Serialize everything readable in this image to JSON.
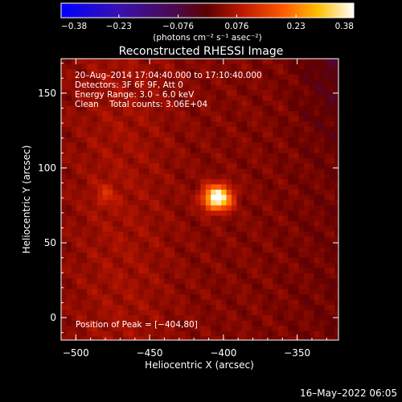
{
  "chart_data": {
    "type": "heatmap",
    "title": "Reconstructed RHESSI Image",
    "xlabel": "Heliocentric X (arcsec)",
    "ylabel": "Heliocentric Y (arcsec)",
    "xlim": [
      -510,
      -322
    ],
    "ylim": [
      -15,
      173
    ],
    "x_ticks": [
      -500,
      -450,
      -400,
      -350
    ],
    "y_ticks": [
      0,
      50,
      100,
      150
    ],
    "x_tick_labels": [
      "−500",
      "−450",
      "−400",
      "−350"
    ],
    "y_tick_labels": [
      "0",
      "50",
      "100",
      "150"
    ],
    "colorbar": {
      "min": -0.38,
      "max": 0.38,
      "ticks": [
        -0.38,
        -0.23,
        -0.076,
        0.076,
        0.23,
        0.38
      ],
      "tick_labels": [
        "−0.38",
        "−0.23",
        "−0.076",
        "0.076",
        "0.23",
        "0.38"
      ],
      "unit_label": "(photons cm⁻² s⁻¹ asec⁻²)"
    },
    "annotations": [
      "20–Aug–2014 17:04:40.000 to 17:10:40.000",
      "Detectors: 3F 6F 9F, Att 0",
      "Energy Range: 3.0 – 6.0 keV",
      "Clean    Total counts: 3.06E+04"
    ],
    "peak_label": "Position of Peak = [−404,80]",
    "peak": [
      -404,
      80
    ],
    "footer": "16–May–2022 06:05"
  }
}
